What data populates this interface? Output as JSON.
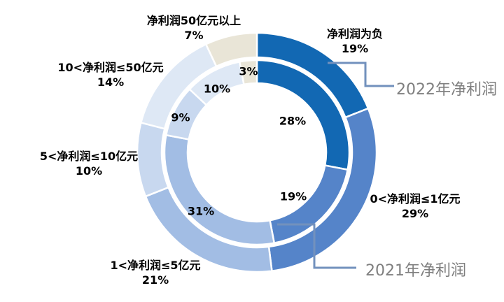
{
  "chart_data": {
    "type": "donut",
    "title": "",
    "categories": [
      "净利润为负",
      "0<净利润≤1亿元",
      "1<净利润≤5亿元",
      "5<净利润≤10亿元",
      "10<净利润≤50亿元",
      "净利润50亿元以上"
    ],
    "series": [
      {
        "name": "2022年净利润",
        "ring": "outer",
        "unit": "%",
        "values": [
          19,
          29,
          21,
          10,
          14,
          7
        ]
      },
      {
        "name": "2021年净利润",
        "ring": "inner",
        "unit": "%",
        "values": [
          28,
          19,
          31,
          9,
          10,
          3
        ]
      }
    ],
    "colors": [
      "#1268B3",
      "#5584C9",
      "#A2BDE4",
      "#C8D8EF",
      "#DEE8F5",
      "#E9E5D7"
    ],
    "start_angle_deg": 0,
    "direction": "clockwise",
    "legend_position": "none",
    "grid": false
  },
  "labels": {
    "outer": [
      {
        "name": "净利润为负",
        "pct": "19%"
      },
      {
        "name": "0<净利润≤1亿元",
        "pct": "29%"
      },
      {
        "name": "1<净利润≤5亿元",
        "pct": "21%"
      },
      {
        "name": "5<净利润≤10亿元",
        "pct": "10%"
      },
      {
        "name": "10<净利润≤50亿元",
        "pct": "14%"
      },
      {
        "name": "净利润50亿元以上",
        "pct": "7%"
      }
    ],
    "inner_pcts": [
      "28%",
      "19%",
      "31%",
      "9%",
      "10%",
      "3%"
    ],
    "callouts": {
      "outer_series": "2022年净利润",
      "inner_series": "2021年净利润"
    }
  },
  "style": {
    "background": "#FFFFFF",
    "label_color": "#000000",
    "callout_text_color": "#7F7F7F",
    "connector_color": "#7291BD",
    "segment_border_color": "#FFFFFF"
  }
}
